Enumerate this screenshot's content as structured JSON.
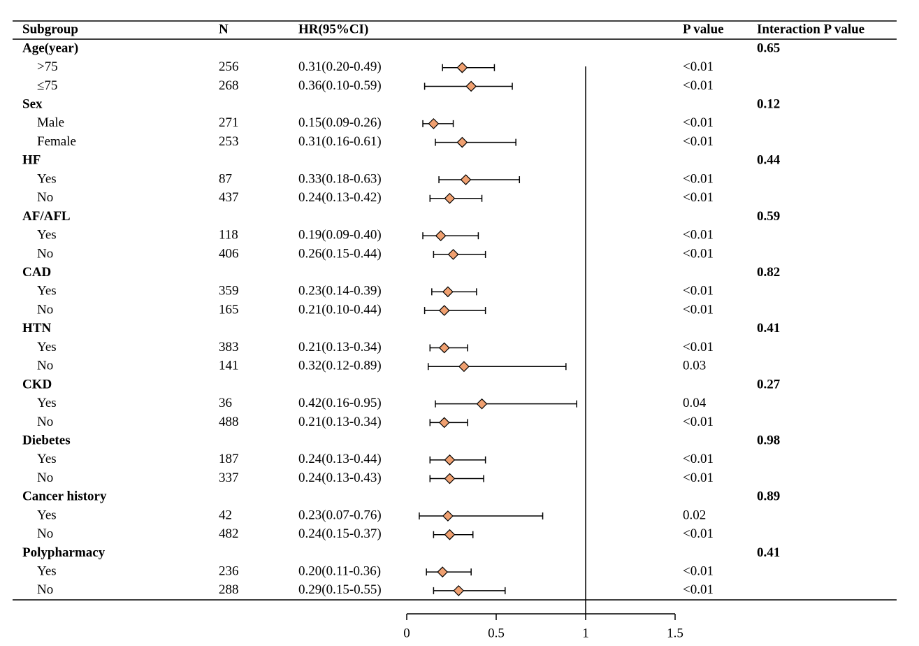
{
  "chart_data": {
    "type": "forest",
    "columns": [
      "Subgroup",
      "N",
      "HR(95%CI)",
      "P value",
      "Interaction P value"
    ],
    "xlim": [
      0,
      1.5
    ],
    "xticks": [
      0,
      0.5,
      1,
      1.5
    ],
    "ref_line": 1,
    "color": "#f0a070",
    "groups": [
      {
        "label": "Age(year)",
        "interaction_p": 0.65,
        "items": [
          {
            "label": ">75",
            "n": 256,
            "hr": 0.31,
            "lower": 0.2,
            "upper": 0.49,
            "hr_label": "0.31(0.20-0.49)",
            "p": "<0.01"
          },
          {
            "label": "≤75",
            "n": 268,
            "hr": 0.36,
            "lower": 0.1,
            "upper": 0.59,
            "hr_label": "0.36(0.10-0.59)",
            "p": "<0.01"
          }
        ]
      },
      {
        "label": "Sex",
        "interaction_p": 0.12,
        "items": [
          {
            "label": "Male",
            "n": 271,
            "hr": 0.15,
            "lower": 0.09,
            "upper": 0.26,
            "hr_label": "0.15(0.09-0.26)",
            "p": "<0.01"
          },
          {
            "label": "Female",
            "n": 253,
            "hr": 0.31,
            "lower": 0.16,
            "upper": 0.61,
            "hr_label": "0.31(0.16-0.61)",
            "p": "<0.01"
          }
        ]
      },
      {
        "label": "HF",
        "interaction_p": 0.44,
        "items": [
          {
            "label": "Yes",
            "n": 87,
            "hr": 0.33,
            "lower": 0.18,
            "upper": 0.63,
            "hr_label": "0.33(0.18-0.63)",
            "p": "<0.01"
          },
          {
            "label": "No",
            "n": 437,
            "hr": 0.24,
            "lower": 0.13,
            "upper": 0.42,
            "hr_label": "0.24(0.13-0.42)",
            "p": "<0.01"
          }
        ]
      },
      {
        "label": "AF/AFL",
        "interaction_p": 0.59,
        "items": [
          {
            "label": "Yes",
            "n": 118,
            "hr": 0.19,
            "lower": 0.09,
            "upper": 0.4,
            "hr_label": "0.19(0.09-0.40)",
            "p": "<0.01"
          },
          {
            "label": "No",
            "n": 406,
            "hr": 0.26,
            "lower": 0.15,
            "upper": 0.44,
            "hr_label": "0.26(0.15-0.44)",
            "p": "<0.01"
          }
        ]
      },
      {
        "label": "CAD",
        "interaction_p": 0.82,
        "items": [
          {
            "label": "Yes",
            "n": 359,
            "hr": 0.23,
            "lower": 0.14,
            "upper": 0.39,
            "hr_label": "0.23(0.14-0.39)",
            "p": "<0.01"
          },
          {
            "label": "No",
            "n": 165,
            "hr": 0.21,
            "lower": 0.1,
            "upper": 0.44,
            "hr_label": "0.21(0.10-0.44)",
            "p": "<0.01"
          }
        ]
      },
      {
        "label": "HTN",
        "interaction_p": 0.41,
        "items": [
          {
            "label": "Yes",
            "n": 383,
            "hr": 0.21,
            "lower": 0.13,
            "upper": 0.34,
            "hr_label": "0.21(0.13-0.34)",
            "p": "<0.01"
          },
          {
            "label": "No",
            "n": 141,
            "hr": 0.32,
            "lower": 0.12,
            "upper": 0.89,
            "hr_label": "0.32(0.12-0.89)",
            "p": "0.03"
          }
        ]
      },
      {
        "label": "CKD",
        "interaction_p": 0.27,
        "items": [
          {
            "label": "Yes",
            "n": 36,
            "hr": 0.42,
            "lower": 0.16,
            "upper": 0.95,
            "hr_label": "0.42(0.16-0.95)",
            "p": "0.04"
          },
          {
            "label": "No",
            "n": 488,
            "hr": 0.21,
            "lower": 0.13,
            "upper": 0.34,
            "hr_label": "0.21(0.13-0.34)",
            "p": "<0.01"
          }
        ]
      },
      {
        "label": "Diebetes",
        "interaction_p": 0.98,
        "items": [
          {
            "label": "Yes",
            "n": 187,
            "hr": 0.24,
            "lower": 0.13,
            "upper": 0.44,
            "hr_label": "0.24(0.13-0.44)",
            "p": "<0.01"
          },
          {
            "label": "No",
            "n": 337,
            "hr": 0.24,
            "lower": 0.13,
            "upper": 0.43,
            "hr_label": "0.24(0.13-0.43)",
            "p": "<0.01"
          }
        ]
      },
      {
        "label": "Cancer history",
        "interaction_p": 0.89,
        "items": [
          {
            "label": "Yes",
            "n": 42,
            "hr": 0.23,
            "lower": 0.07,
            "upper": 0.76,
            "hr_label": "0.23(0.07-0.76)",
            "p": "0.02"
          },
          {
            "label": "No",
            "n": 482,
            "hr": 0.24,
            "lower": 0.15,
            "upper": 0.37,
            "hr_label": "0.24(0.15-0.37)",
            "p": "<0.01"
          }
        ]
      },
      {
        "label": "Polypharmacy",
        "interaction_p": 0.41,
        "items": [
          {
            "label": "Yes",
            "n": 236,
            "hr": 0.2,
            "lower": 0.11,
            "upper": 0.36,
            "hr_label": "0.20(0.11-0.36)",
            "p": "<0.01"
          },
          {
            "label": "No",
            "n": 288,
            "hr": 0.29,
            "lower": 0.15,
            "upper": 0.55,
            "hr_label": "0.29(0.15-0.55)",
            "p": "<0.01"
          }
        ]
      }
    ]
  }
}
